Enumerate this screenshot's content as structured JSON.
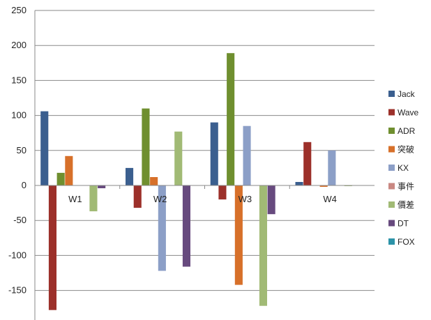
{
  "chart_data": {
    "type": "bar",
    "title": "",
    "xlabel": "",
    "ylabel": "",
    "ylim": [
      -180,
      250
    ],
    "yticks": [
      250,
      200,
      150,
      100,
      50,
      0,
      -50,
      -100,
      -150
    ],
    "grid": true,
    "legend_position": "right",
    "categories": [
      "W1",
      "W2",
      "W3",
      "W4"
    ],
    "series": [
      {
        "name": "Jack",
        "color": "#3b5f8f",
        "values": [
          106,
          25,
          90,
          5
        ]
      },
      {
        "name": "Wave",
        "color": "#9c302a",
        "values": [
          -178,
          -32,
          -20,
          62
        ]
      },
      {
        "name": "ADR",
        "color": "#6f8f2f",
        "values": [
          18,
          110,
          189,
          0
        ]
      },
      {
        "name": "突破",
        "color": "#d7702a",
        "values": [
          42,
          12,
          -142,
          -2
        ]
      },
      {
        "name": "KX",
        "color": "#8c9fc7",
        "values": [
          0,
          -122,
          85,
          50
        ]
      },
      {
        "name": "事件",
        "color": "#c98882",
        "values": [
          0,
          0,
          0,
          0
        ]
      },
      {
        "name": "價差",
        "color": "#a1ba75",
        "values": [
          -37,
          77,
          -172,
          -1
        ]
      },
      {
        "name": "DT",
        "color": "#674a7e",
        "values": [
          -4,
          -116,
          -41,
          0
        ]
      },
      {
        "name": "FOX",
        "color": "#2c93a8",
        "values": [
          0,
          0,
          0,
          0
        ]
      }
    ]
  }
}
